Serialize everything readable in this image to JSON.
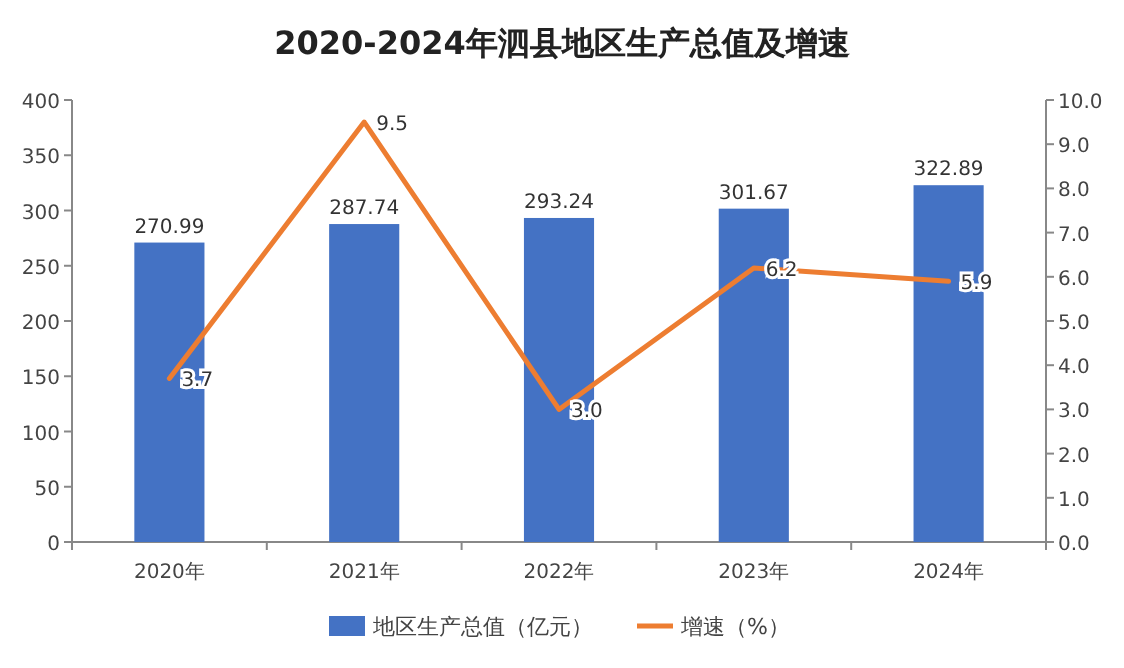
{
  "chart_data": {
    "type": "bar",
    "title": "2020-2024年泗县地区生产总值及增速",
    "categories": [
      "2020年",
      "2021年",
      "2022年",
      "2023年",
      "2024年"
    ],
    "series": [
      {
        "name": "地区生产总值（亿元）",
        "color": "#4472c4",
        "values": [
          270.99,
          287.74,
          293.24,
          301.67,
          322.89
        ]
      },
      {
        "name": "增速（%）",
        "type": "line",
        "axis": "y2",
        "color": "#ed7d31",
        "values": [
          3.7,
          9.5,
          3.0,
          6.2,
          5.9
        ],
        "value_labels": [
          "3.7",
          "9.5",
          "3.0",
          "6.2",
          "5.9"
        ]
      }
    ],
    "ylim": [
      0,
      400
    ],
    "yticks": [
      0,
      50,
      100,
      150,
      200,
      250,
      300,
      350,
      400
    ],
    "y2lim": [
      0,
      10
    ],
    "y2ticks": [
      {
        "value": 0,
        "label": "0.0"
      },
      {
        "value": 1,
        "label": "1.0"
      },
      {
        "value": 2,
        "label": "2.0"
      },
      {
        "value": 3,
        "label": "3.0"
      },
      {
        "value": 4,
        "label": "4.0"
      },
      {
        "value": 5,
        "label": "5.0"
      },
      {
        "value": 6,
        "label": "6.0"
      },
      {
        "value": 7,
        "label": "7.0"
      },
      {
        "value": 8,
        "label": "8.0"
      },
      {
        "value": 9,
        "label": "9.0"
      },
      {
        "value": 10,
        "label": "10.0"
      }
    ],
    "data_labels": true,
    "marker": "none",
    "line_style": "solid",
    "grid": false,
    "legend": "bottom"
  }
}
